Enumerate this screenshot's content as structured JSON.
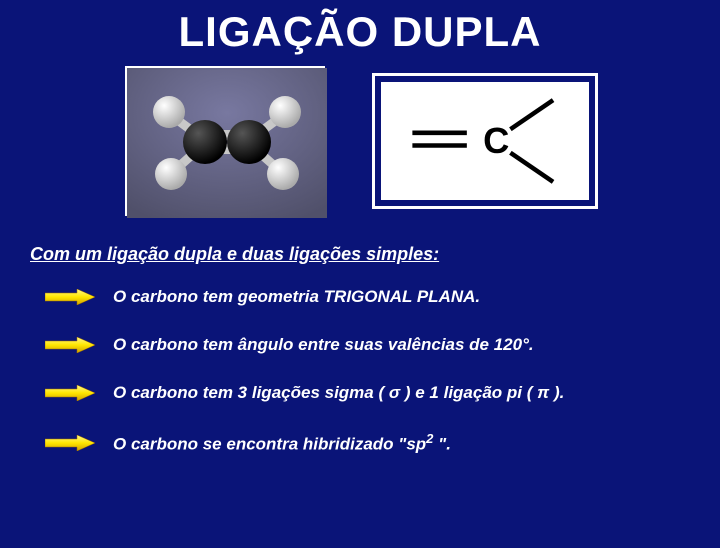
{
  "title": "LIGAÇÃO DUPLA",
  "subtitle": "Com um ligação dupla e duas ligações simples:",
  "bullets": [
    {
      "text_html": "O carbono tem geometria TRIGONAL PLANA."
    },
    {
      "text_html": "O carbono tem ângulo entre suas valências de 120°."
    },
    {
      "text_html": "O carbono tem 3 ligações sigma ( σ ) e 1 ligação pi ( π  )."
    },
    {
      "text_html": "O carbono se encontra hibridizado \"sp<span class='sup'>2</span> \"."
    }
  ],
  "diagram": {
    "atom_label": "C",
    "line_color": "#000000",
    "label_color": "#000000",
    "bg": "#ffffff",
    "line_width": 5,
    "font_size": 36
  },
  "molecule_photo": {
    "bg_gradient_top": "#6a6a85",
    "bg_gradient_bottom": "#9a9ab0",
    "black_atom_color": "#1a1a1a",
    "white_atom_color": "#e8e8e8",
    "bond_color": "#cccccc"
  },
  "arrow_colors": {
    "fill": "#ffe600",
    "stroke": "#c09000"
  },
  "colors": {
    "background": "#0a1478",
    "text": "#ffffff"
  }
}
